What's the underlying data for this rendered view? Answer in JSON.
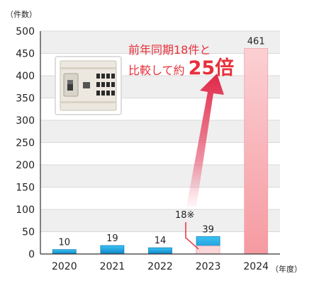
{
  "chart_data": {
    "type": "bar",
    "title": "",
    "ylabel": "（件数）",
    "xlabel_unit": "（年度）",
    "categories": [
      "2020",
      "2021",
      "2022",
      "2023",
      "2024"
    ],
    "series": [
      {
        "values": [
          10,
          19,
          14,
          39,
          461
        ]
      }
    ],
    "overlay_values": [
      null,
      null,
      null,
      18,
      null
    ],
    "overlay_label": "18※",
    "ylim": [
      0,
      500
    ],
    "yticks": [
      0,
      50,
      100,
      150,
      200,
      250,
      300,
      350,
      400,
      450,
      500
    ],
    "grid": "alternating bands",
    "annotation": {
      "line1": "前年同期18件と",
      "line2_prefix": "比較して約",
      "line2_emphasis": "25倍"
    },
    "colors": {
      "bar_blue": "#1aa0e0",
      "bar_pink": "#f6a0a6",
      "overlay_pink": "#fbd6d8",
      "annotation_text": "#e8303a",
      "arrow": "#e43b55",
      "band": "#efefef",
      "axis": "#333333"
    }
  }
}
